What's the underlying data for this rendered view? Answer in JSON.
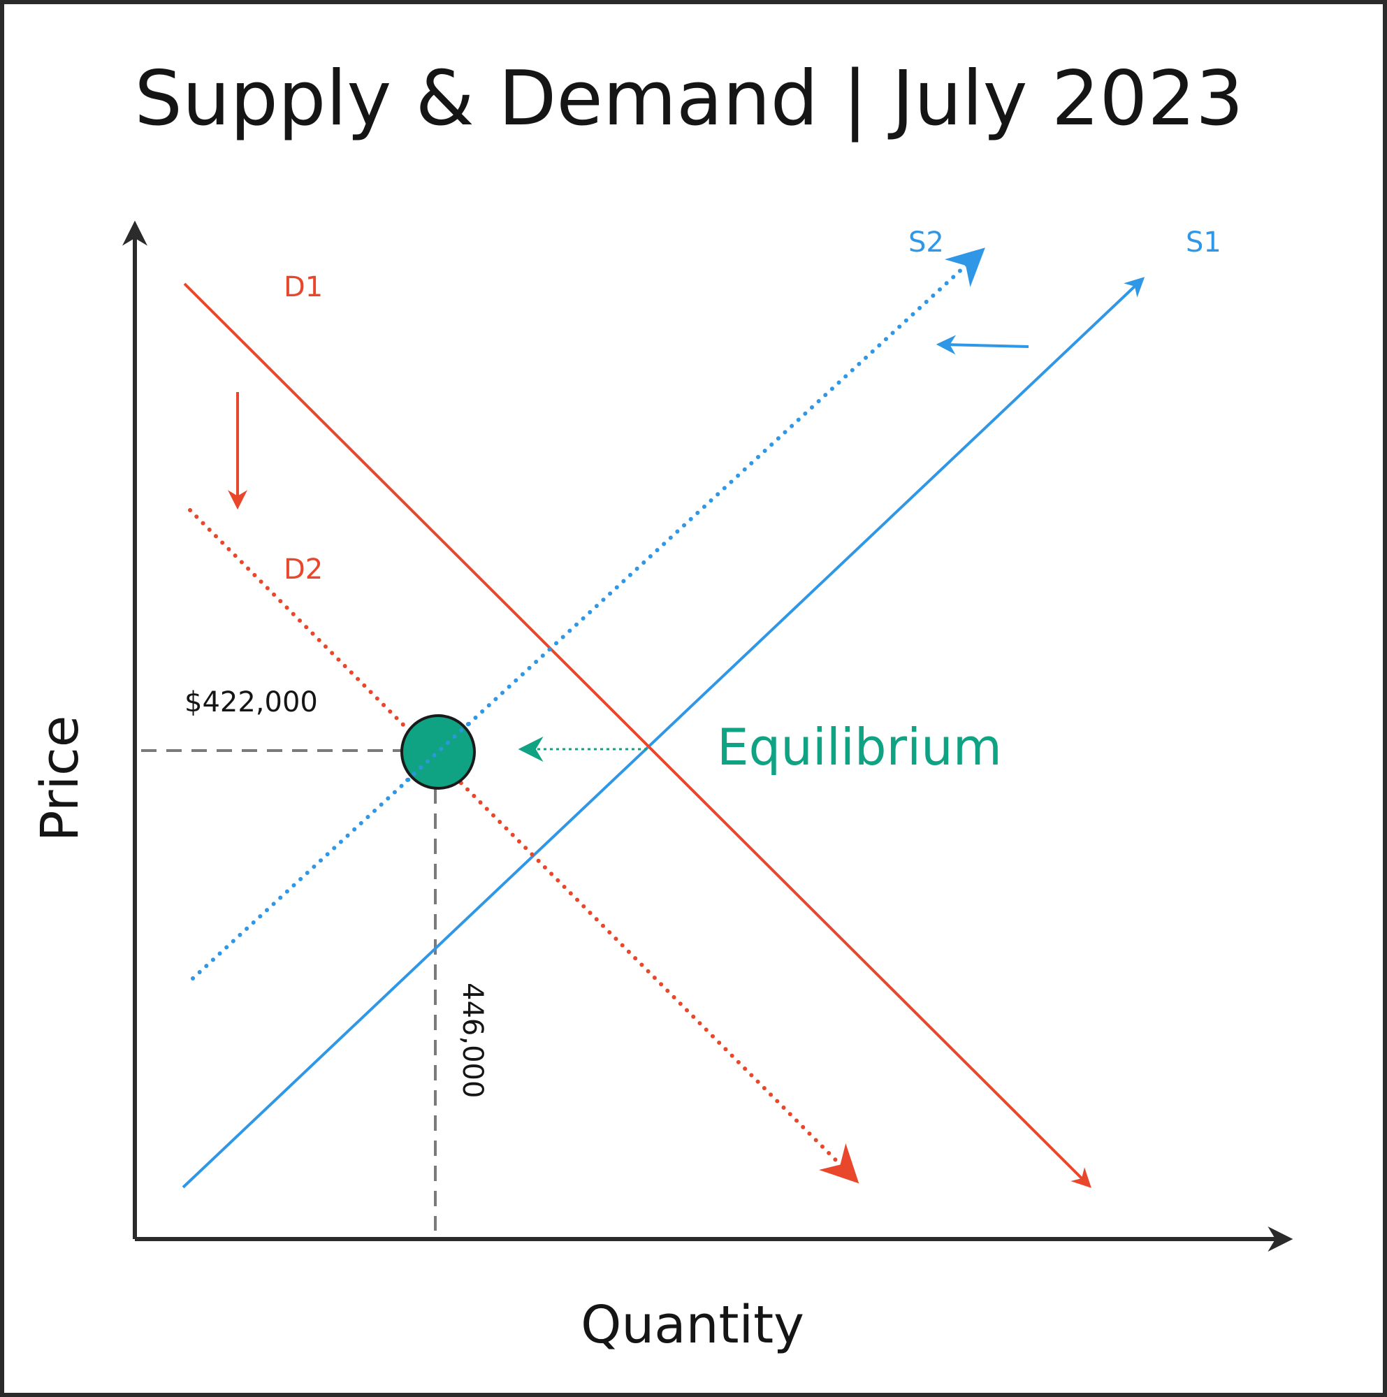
{
  "title": "Supply & Demand | July 2023",
  "axes": {
    "x_label": "Quantity",
    "y_label": "Price"
  },
  "curves": {
    "d1": {
      "label": "D1",
      "color": "#e8472b",
      "style": "solid"
    },
    "d2": {
      "label": "D2",
      "color": "#e8472b",
      "style": "dotted"
    },
    "s1": {
      "label": "S1",
      "color": "#2f97e5",
      "style": "solid"
    },
    "s2": {
      "label": "S2",
      "color": "#2f97e5",
      "style": "dotted"
    }
  },
  "equilibrium": {
    "label": "Equilibrium",
    "price": "$422,000",
    "quantity": "446,000",
    "color": "#0fa283"
  },
  "colors": {
    "axis": "#2b2b2b",
    "guide": "#7a7a7a",
    "demand": "#e8472b",
    "supply": "#2f97e5",
    "equilibrium": "#0fa283"
  }
}
